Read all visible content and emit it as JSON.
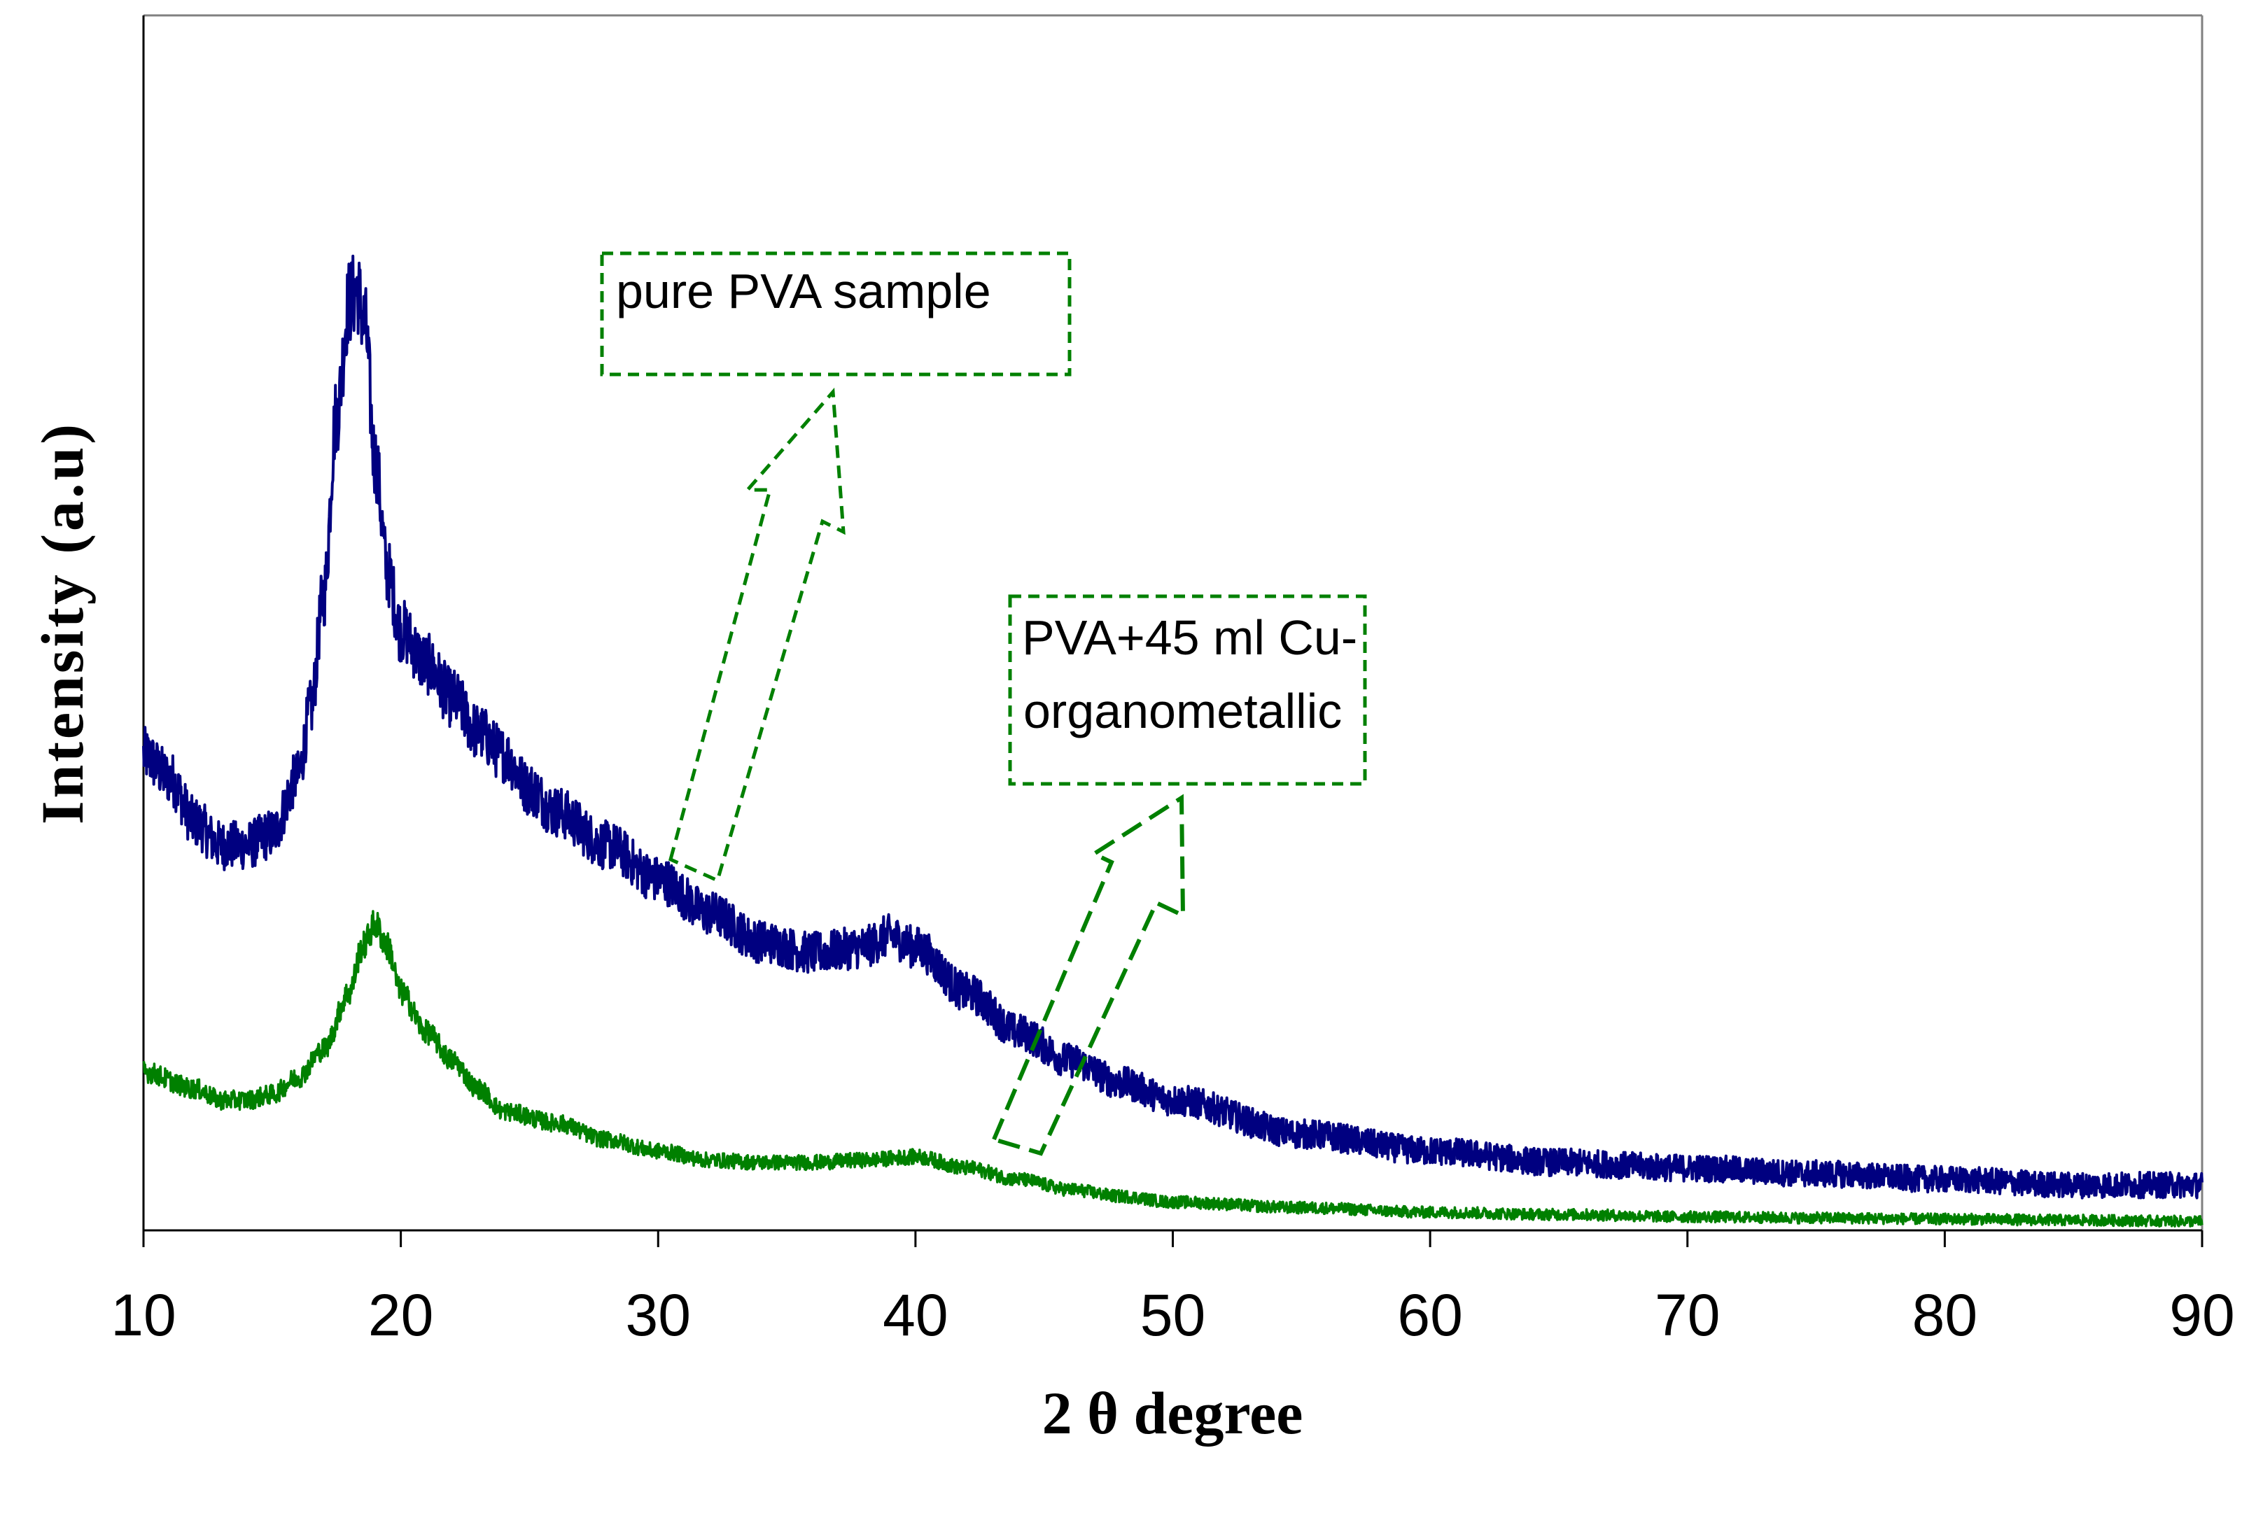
{
  "chart_data": {
    "type": "line",
    "title": "",
    "xlabel": "2 θ degree",
    "ylabel": "Intensity (a.u)",
    "xlim": [
      10,
      90
    ],
    "ylim": [
      0,
      100
    ],
    "xticks": [
      10,
      20,
      30,
      40,
      50,
      60,
      70,
      80,
      90
    ],
    "yticks_shown": false,
    "grid": false,
    "legend": "none",
    "series": [
      {
        "name": "pure PVA sample",
        "color": "#000080",
        "x": [
          10,
          11,
          12,
          13,
          14,
          15,
          16,
          16.5,
          17,
          17.5,
          18,
          18.3,
          18.6,
          19,
          19.5,
          20,
          21,
          22,
          23,
          24,
          25,
          26,
          28,
          30,
          32,
          34,
          36,
          38,
          39,
          40,
          42,
          44,
          46,
          48,
          50,
          55,
          60,
          65,
          70,
          75,
          80,
          85,
          90
        ],
        "y": [
          42,
          40,
          36,
          34,
          34,
          35,
          40,
          46,
          56,
          72,
          82,
          83,
          80,
          68,
          58,
          53,
          50,
          47,
          44,
          42,
          39,
          37,
          34,
          31,
          28,
          25.5,
          24.5,
          25,
          26,
          25,
          21,
          17.5,
          15,
          13,
          11.5,
          8.5,
          7,
          6,
          5.5,
          5,
          4.5,
          4,
          4
        ]
      },
      {
        "name": "PVA+45 ml Cu-organometallic",
        "color": "#008000",
        "x": [
          10,
          12,
          13,
          14,
          15,
          16,
          17,
          18,
          18.5,
          19,
          19.5,
          20,
          21,
          22,
          23,
          24,
          26,
          28,
          30,
          32,
          34,
          36,
          38,
          40,
          42,
          44,
          46,
          48,
          50,
          55,
          60,
          65,
          70,
          75,
          80,
          85,
          90
        ],
        "y": [
          14,
          12.5,
          11.5,
          11.5,
          12,
          13.5,
          16,
          21,
          25,
          27,
          25,
          21,
          17.5,
          15,
          12.5,
          10.5,
          9.5,
          8,
          7,
          6.2,
          6,
          6,
          6.2,
          6.5,
          5.5,
          4.5,
          3.6,
          3,
          2.5,
          2,
          1.6,
          1.4,
          1.2,
          1.1,
          1.0,
          0.9,
          0.8
        ]
      }
    ],
    "annotations": [
      {
        "text_lines": [
          "pure PVA sample"
        ],
        "color": "#008000",
        "style": "dashed box with hollow arrow",
        "points_to_series": "pure PVA sample"
      },
      {
        "text_lines": [
          " PVA+45 ml Cu-",
          "organometallic"
        ],
        "color": "#008000",
        "style": "dashed box with hollow arrow",
        "points_to_series": "PVA+45 ml Cu-organometallic"
      }
    ]
  }
}
